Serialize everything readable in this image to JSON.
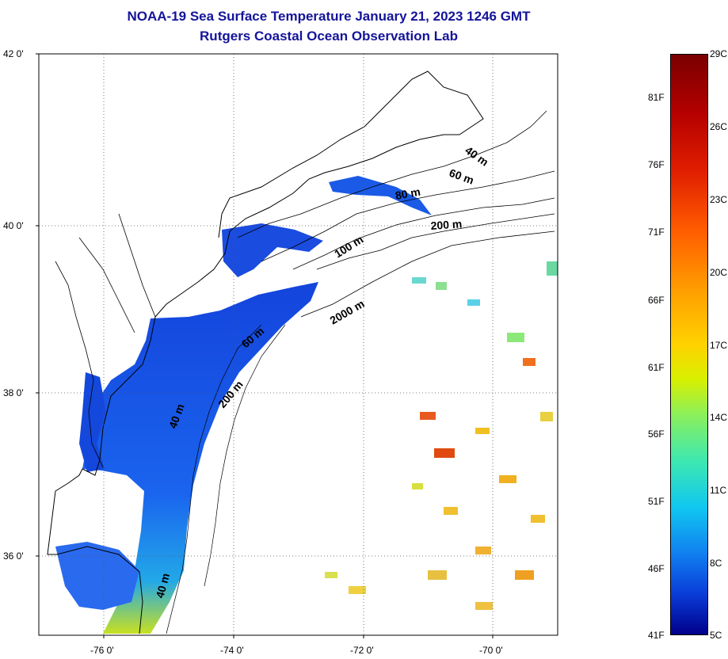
{
  "title": {
    "line1": "NOAA-19 Sea Surface Temperature January 21, 2023 1246 GMT",
    "line2": "Rutgers Coastal Ocean Observation Lab"
  },
  "map": {
    "lat_ticks": [
      {
        "value": 42,
        "label": "42 0'"
      },
      {
        "value": 40,
        "label": "40 0'"
      },
      {
        "value": 38,
        "label": "38 0'"
      },
      {
        "value": 36,
        "label": "36 0'"
      }
    ],
    "lon_ticks": [
      {
        "value": -76,
        "label": "-76 0'"
      },
      {
        "value": -74,
        "label": "-74 0'"
      },
      {
        "value": -72,
        "label": "-72 0'"
      },
      {
        "value": -70,
        "label": "-70 0'"
      }
    ],
    "lat_range": [
      35,
      42
    ],
    "lon_range": [
      -77,
      -69
    ],
    "isobath_labels": [
      "40 m",
      "60 m",
      "80 m",
      "200 m",
      "100 m",
      "2000 m",
      "60 m",
      "200 m",
      "40 m",
      "40 m"
    ],
    "colors": {
      "coast": "#000000",
      "grid": "#555555",
      "cold_water": "#1450e0",
      "shelf_water": "#2a6cf0",
      "warm_patch": "#f0c020"
    }
  },
  "colorbar": {
    "fahrenheit_labels": [
      "81F",
      "76F",
      "71F",
      "66F",
      "61F",
      "56F",
      "51F",
      "46F",
      "41F"
    ],
    "celsius_labels": [
      "29C",
      "26C",
      "23C",
      "20C",
      "17C",
      "14C",
      "11C",
      "8C",
      "5C"
    ],
    "min_c": 5,
    "max_c": 29
  }
}
